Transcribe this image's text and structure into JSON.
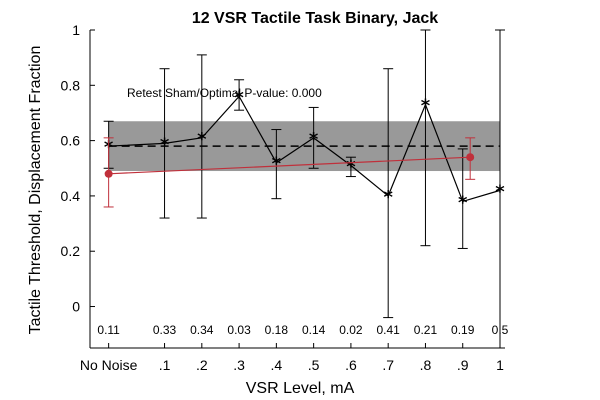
{
  "chart_data": {
    "type": "line",
    "title": "12 VSR Tactile Task Binary, Jack",
    "xlabel": "VSR Level, mA",
    "ylabel": "Tactile Threshold, Displacement Fraction",
    "xlim": [
      -0.1,
      1.0
    ],
    "ylim": [
      -0.15,
      1.0
    ],
    "x_tick_values": [
      -0.05,
      0.1,
      0.2,
      0.3,
      0.4,
      0.5,
      0.6,
      0.7,
      0.8,
      0.9,
      1.0
    ],
    "x_tick_labels": [
      "No Noise",
      ".1",
      ".2",
      ".3",
      ".4",
      ".5",
      ".6",
      ".7",
      ".8",
      ".9",
      "1"
    ],
    "y_ticks": [
      0,
      0.2,
      0.4,
      0.6,
      0.8,
      1
    ],
    "y_tick_labels": [
      "0",
      "0.2",
      "0.4",
      "0.6",
      "0.8",
      "1"
    ],
    "annotation": "Retest Sham/Optimal P-value: 0.000",
    "sham_band": {
      "mean": 0.58,
      "lower": 0.49,
      "upper": 0.67,
      "band_color": "#999999"
    },
    "series": [
      {
        "color": "#000000",
        "x": [
          -0.05,
          0.1,
          0.2,
          0.3,
          0.4,
          0.5,
          0.6,
          0.7,
          0.8,
          0.9,
          1.0
        ],
        "y": [
          0.58,
          0.59,
          0.61,
          0.76,
          0.52,
          0.61,
          0.51,
          0.4,
          0.73,
          0.38,
          0.42
        ],
        "err_low": [
          0.5,
          0.32,
          0.32,
          0.71,
          0.39,
          0.5,
          0.47,
          -0.04,
          0.22,
          0.21,
          -0.15
        ],
        "err_high": [
          0.67,
          0.86,
          0.91,
          0.82,
          0.64,
          0.72,
          0.54,
          0.86,
          1.0,
          0.57,
          1.0
        ]
      },
      {
        "color": "#c0303b",
        "x": [
          -0.05,
          0.92
        ],
        "y": [
          0.48,
          0.54
        ],
        "err_low": [
          0.36,
          0.46
        ],
        "err_high": [
          0.61,
          0.61
        ]
      }
    ],
    "p_values": [
      {
        "x": -0.05,
        "label": "0.11"
      },
      {
        "x": 0.1,
        "label": "0.33"
      },
      {
        "x": 0.2,
        "label": "0.34"
      },
      {
        "x": 0.3,
        "label": "0.03"
      },
      {
        "x": 0.4,
        "label": "0.18"
      },
      {
        "x": 0.5,
        "label": "0.14"
      },
      {
        "x": 0.6,
        "label": "0.02"
      },
      {
        "x": 0.7,
        "label": "0.41"
      },
      {
        "x": 0.8,
        "label": "0.21"
      },
      {
        "x": 0.9,
        "label": "0.19"
      },
      {
        "x": 1.0,
        "label": "0.5"
      }
    ],
    "p_value_y": -0.085,
    "grid": false,
    "legend": "none"
  }
}
